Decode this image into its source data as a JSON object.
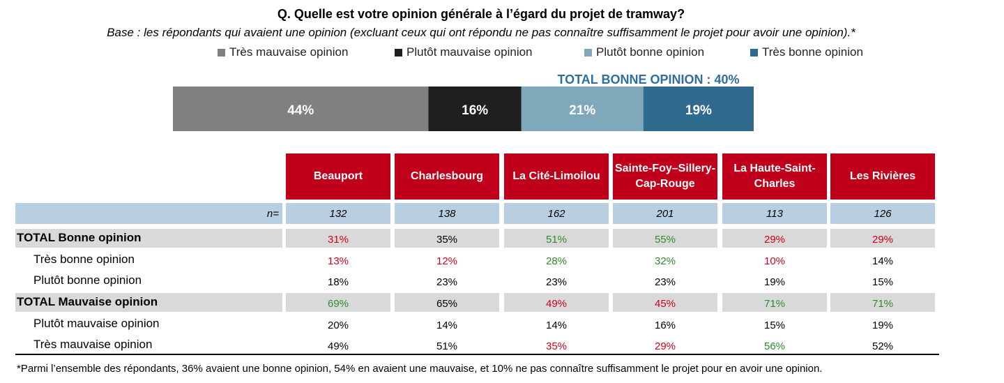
{
  "title": "Q. Quelle est votre opinion générale à l’égard du projet de tramway?",
  "subtitle": "Base : les répondants qui avaient une opinion (excluant ceux qui ont répondu ne pas connaître suffisamment le projet pour avoir une opinion).*",
  "chart_data": [
    {
      "type": "bar",
      "orientation": "horizontal-stacked-100",
      "categories": [
        "Très mauvaise opinion",
        "Plutôt mauvaise opinion",
        "Plutôt bonne opinion",
        "Très bonne opinion"
      ],
      "series": [
        {
          "name": "Très mauvaise opinion",
          "value": 44,
          "label": "44%",
          "color": "#808080"
        },
        {
          "name": "Plutôt mauvaise opinion",
          "value": 16,
          "label": "16%",
          "color": "#1f1f1f"
        },
        {
          "name": "Plutôt bonne opinion",
          "value": 21,
          "label": "21%",
          "color": "#7fa8bb"
        },
        {
          "name": "Très bonne opinion",
          "value": 19,
          "label": "19%",
          "color": "#2f6a8f"
        }
      ],
      "annotation": "TOTAL BONNE OPINION : 40%",
      "legend_position": "top"
    },
    {
      "type": "table",
      "columns": [
        "Beauport",
        "Charlesbourg",
        "La Cité-Limoilou",
        "Sainte-Foy–Sillery-Cap-Rouge",
        "La Haute-Saint-Charles",
        "Les Rivières"
      ],
      "n_label": "n=",
      "n_values": [
        "132",
        "138",
        "162",
        "201",
        "113",
        "126"
      ],
      "rows": [
        {
          "label": "TOTAL Bonne opinion",
          "total": true,
          "values": [
            "31%",
            "35%",
            "51%",
            "55%",
            "29%",
            "29%"
          ],
          "colors": [
            "red",
            "black",
            "green",
            "green",
            "red",
            "red"
          ]
        },
        {
          "label": "Très bonne opinion",
          "total": false,
          "values": [
            "13%",
            "12%",
            "28%",
            "32%",
            "10%",
            "14%"
          ],
          "colors": [
            "red",
            "red",
            "green",
            "green",
            "red",
            "black"
          ]
        },
        {
          "label": "Plutôt bonne opinion",
          "total": false,
          "values": [
            "18%",
            "23%",
            "23%",
            "23%",
            "19%",
            "15%"
          ],
          "colors": [
            "black",
            "black",
            "black",
            "black",
            "black",
            "black"
          ]
        },
        {
          "label": "TOTAL Mauvaise opinion",
          "total": true,
          "values": [
            "69%",
            "65%",
            "49%",
            "45%",
            "71%",
            "71%"
          ],
          "colors": [
            "green",
            "black",
            "red",
            "red",
            "green",
            "green"
          ]
        },
        {
          "label": "Plutôt mauvaise opinion",
          "total": false,
          "values": [
            "20%",
            "14%",
            "14%",
            "16%",
            "15%",
            "19%"
          ],
          "colors": [
            "black",
            "black",
            "black",
            "black",
            "black",
            "black"
          ]
        },
        {
          "label": "Très mauvaise opinion",
          "total": false,
          "values": [
            "49%",
            "51%",
            "35%",
            "29%",
            "56%",
            "52%"
          ],
          "colors": [
            "black",
            "black",
            "red",
            "red",
            "green",
            "black"
          ]
        }
      ],
      "value_colors": {
        "red": "#d0021b",
        "green": "#2e8b2e",
        "black": "#000000"
      },
      "header_color": "#c0001a",
      "n_row_color": "#b7cfe0",
      "total_row_color": "#d9d9d9"
    }
  ],
  "footnote": "*Parmi l’ensemble des répondants, 36% avaient une bonne opinion, 54% en avaient une mauvaise, et 10% ne pas connaître suffisamment le projet pour en avoir une opinion."
}
